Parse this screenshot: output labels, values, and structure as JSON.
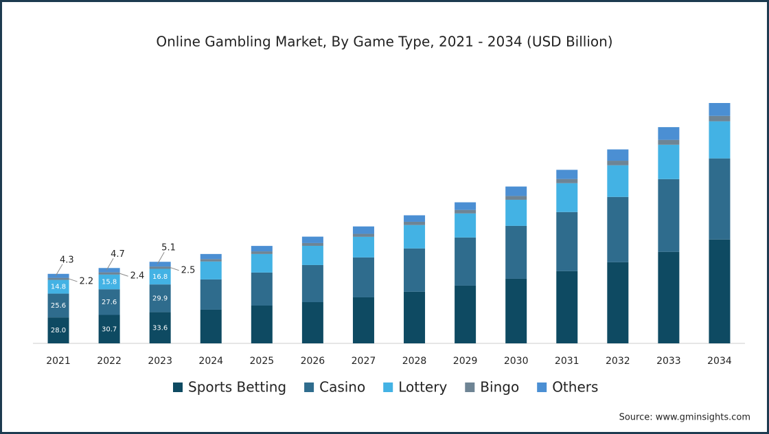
{
  "chart_data": {
    "type": "stacked-bar",
    "title": "Online Gambling Market, By Game Type, 2021 - 2034 (USD Billion)",
    "source": "Source: www.gminsights.com",
    "categories": [
      "2021",
      "2022",
      "2023",
      "2024",
      "2025",
      "2026",
      "2027",
      "2028",
      "2029",
      "2030",
      "2031",
      "2032",
      "2033",
      "2034"
    ],
    "series": [
      {
        "name": "Sports Betting",
        "color": "#0e4a62",
        "values": [
          28.0,
          30.7,
          33.6,
          36.3,
          40.7,
          44.4,
          49.6,
          55.6,
          62.2,
          69.6,
          77.8,
          87.4,
          98.5,
          111.9
        ],
        "value_labels": [
          "28.0",
          "30.7",
          "33.6",
          null,
          null,
          null,
          null,
          null,
          null,
          null,
          null,
          null,
          null,
          null
        ]
      },
      {
        "name": "Casino",
        "color": "#2f6c8d",
        "values": [
          25.6,
          27.6,
          29.9,
          32.6,
          35.6,
          40.0,
          43.0,
          46.7,
          51.9,
          57.0,
          63.7,
          70.4,
          78.5,
          87.4
        ],
        "value_labels": [
          "25.6",
          "27.6",
          "29.9",
          null,
          null,
          null,
          null,
          null,
          null,
          null,
          null,
          null,
          null,
          null
        ]
      },
      {
        "name": "Lottery",
        "color": "#43b2e4",
        "values": [
          14.8,
          15.8,
          16.8,
          19.3,
          20.0,
          20.7,
          22.2,
          25.2,
          25.9,
          28.1,
          31.1,
          34.1,
          37.0,
          40.0
        ],
        "value_labels": [
          "14.8",
          "15.8",
          "16.8",
          null,
          null,
          null,
          null,
          null,
          null,
          null,
          null,
          null,
          null,
          null
        ]
      },
      {
        "name": "Bingo",
        "color": "#6e8494",
        "values": [
          2.2,
          2.4,
          2.5,
          2.6,
          2.8,
          3.0,
          3.2,
          3.5,
          3.8,
          4.1,
          4.5,
          4.9,
          5.3,
          5.8
        ],
        "value_labels": [
          "2.2",
          "2.4",
          "2.5",
          null,
          null,
          null,
          null,
          null,
          null,
          null,
          null,
          null,
          null,
          null
        ]
      },
      {
        "name": "Others",
        "color": "#4b8fd3",
        "values": [
          4.3,
          4.7,
          5.1,
          5.5,
          5.9,
          6.9,
          8.0,
          7.0,
          8.2,
          10.2,
          9.9,
          12.2,
          13.7,
          13.9
        ],
        "value_labels": [
          "4.3",
          "4.7",
          "5.1",
          null,
          null,
          null,
          null,
          null,
          null,
          null,
          null,
          null,
          null,
          null
        ]
      }
    ]
  }
}
